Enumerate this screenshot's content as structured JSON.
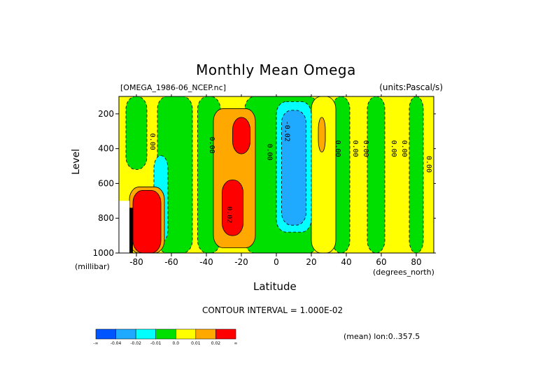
{
  "chart_data": {
    "type": "heatmap",
    "title": "Monthly Mean Omega",
    "dataset_label": "[OMEGA_1986-06_NCEP.nc]",
    "units_label": "(units:Pascal/s)",
    "xlabel": "Latitude",
    "x_unit": "(degrees_north)",
    "ylabel": "Level",
    "y_unit": "(millibar)",
    "xlim": [
      -90,
      90
    ],
    "ylim": [
      1000,
      100
    ],
    "x_ticks": [
      -80,
      -60,
      -40,
      -20,
      0,
      20,
      40,
      60,
      80
    ],
    "x_tick_labels": [
      "-80",
      "-60",
      "-40",
      "-20",
      "0",
      "20",
      "40",
      "60",
      "80"
    ],
    "y_ticks": [
      200,
      400,
      600,
      800,
      1000
    ],
    "y_tick_labels": [
      "200",
      "400",
      "600",
      "800",
      "1000"
    ],
    "contour_interval_text": "CONTOUR INTERVAL = 1.000E-02",
    "mean_note": "(mean) lon:0..357.5",
    "contour_labels": [
      {
        "text": "0.00",
        "lat": -72,
        "p": 360
      },
      {
        "text": "0.00",
        "lat": -38,
        "p": 380
      },
      {
        "text": "0.00",
        "lat": -5,
        "p": 420
      },
      {
        "text": "-0.02",
        "lat": 5,
        "p": 300
      },
      {
        "text": "0.00",
        "lat": 34,
        "p": 400
      },
      {
        "text": "0.00",
        "lat": 44,
        "p": 400
      },
      {
        "text": "0.00",
        "lat": 50,
        "p": 400
      },
      {
        "text": "0.00",
        "lat": 66,
        "p": 400
      },
      {
        "text": "0.00",
        "lat": 72,
        "p": 400
      },
      {
        "text": "0.00",
        "lat": 86,
        "p": 490
      },
      {
        "text": "0.02",
        "lat": -28,
        "p": 780
      }
    ],
    "colorbar": {
      "levels": [
        "-∞",
        "-0.04",
        "-0.02",
        "-0.01",
        "0.0",
        "0.01",
        "0.02",
        "∞"
      ],
      "colors": [
        "#0055ff",
        "#1fa9ff",
        "#00ffff",
        "#00e000",
        "#ffff00",
        "#ffa800",
        "#ff0000"
      ]
    },
    "regions": [
      {
        "value_class": 0.005,
        "color": "#ffff00",
        "lat": [
          -90,
          90
        ],
        "p": [
          100,
          1000
        ]
      },
      {
        "value_class": -0.005,
        "color": "#00e000",
        "lat": [
          -86,
          -74
        ],
        "p": [
          100,
          520
        ]
      },
      {
        "value_class": -0.005,
        "color": "#00e000",
        "lat": [
          -68,
          -48
        ],
        "p": [
          100,
          1000
        ]
      },
      {
        "value_class": -0.005,
        "color": "#00e000",
        "lat": [
          -45,
          -32
        ],
        "p": [
          100,
          1000
        ]
      },
      {
        "value_class": -0.005,
        "color": "#00e000",
        "lat": [
          -18,
          24
        ],
        "p": [
          100,
          1000
        ]
      },
      {
        "value_class": -0.005,
        "color": "#00e000",
        "lat": [
          32,
          42
        ],
        "p": [
          100,
          1000
        ]
      },
      {
        "value_class": -0.005,
        "color": "#00e000",
        "lat": [
          52,
          62
        ],
        "p": [
          100,
          1000
        ]
      },
      {
        "value_class": -0.005,
        "color": "#00e000",
        "lat": [
          76,
          84
        ],
        "p": [
          100,
          1000
        ]
      },
      {
        "value_class": 0.005,
        "color": "#ffff00",
        "lat": [
          20,
          34
        ],
        "p": [
          100,
          1000
        ]
      },
      {
        "value_class": 0.015,
        "color": "#ffa800",
        "lat": [
          -36,
          -12
        ],
        "p": [
          170,
          970
        ]
      },
      {
        "value_class": 0.025,
        "color": "#ff0000",
        "lat": [
          -25,
          -15
        ],
        "p": [
          220,
          430
        ]
      },
      {
        "value_class": 0.025,
        "color": "#ff0000",
        "lat": [
          -31,
          -19
        ],
        "p": [
          580,
          900
        ]
      },
      {
        "value_class": -0.015,
        "color": "#00ffff",
        "lat": [
          0,
          20
        ],
        "p": [
          130,
          880
        ]
      },
      {
        "value_class": -0.03,
        "color": "#1fa9ff",
        "lat": [
          3,
          17
        ],
        "p": [
          180,
          840
        ]
      },
      {
        "value_class": 0.015,
        "color": "#ffa800",
        "lat": [
          24,
          28
        ],
        "p": [
          220,
          420
        ]
      },
      {
        "value_class": -0.015,
        "color": "#00ffff",
        "lat": [
          -70,
          -62
        ],
        "p": [
          440,
          940
        ]
      },
      {
        "value_class": 0.015,
        "color": "#ffa800",
        "lat": [
          -84,
          -64
        ],
        "p": [
          620,
          1000
        ]
      },
      {
        "value_class": 0.025,
        "color": "#ff0000",
        "lat": [
          -82,
          -66
        ],
        "p": [
          640,
          1000
        ]
      },
      {
        "value_class": null,
        "color": "#ffffff",
        "lat": [
          -90,
          -84
        ],
        "p": [
          700,
          1000
        ]
      },
      {
        "value_class": null,
        "color": "#000000",
        "lat": [
          -84,
          -82
        ],
        "p": [
          740,
          1000
        ]
      }
    ]
  }
}
